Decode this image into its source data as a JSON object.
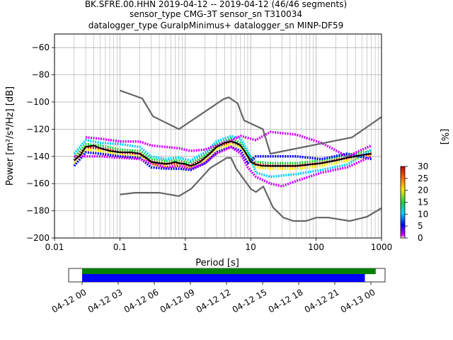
{
  "title_lines": [
    "BK.SFRE.00.HHN   2019-04-12 -- 2019-04-12  (46/46 segments)",
    "sensor_type CMG-3T sensor_sn T310034",
    "datalogger_type GuralpMinimus+ datalogger_sn MINP-DF59"
  ],
  "colorbar": {
    "label": "[%]",
    "ticks": [
      "0",
      "5",
      "10",
      "15",
      "20",
      "25",
      "30"
    ],
    "range": [
      0,
      30
    ]
  },
  "timeline": {
    "tick_labels": [
      "04-12 00",
      "04-12 03",
      "04-12 06",
      "04-12 09",
      "04-12 12",
      "04-12 15",
      "04-12 18",
      "04-12 21",
      "04-13 00"
    ],
    "bars": [
      {
        "name": "data",
        "color": "#008000",
        "start_hour": 0.0,
        "end_hour": 24.4
      },
      {
        "name": "psd",
        "color": "#0000ff",
        "start_hour": 0.0,
        "end_hour": 23.5
      }
    ]
  },
  "chart_data": {
    "type": "line",
    "xlabel": "Period [s]",
    "ylabel": "Power [m²/s⁴/Hz] [dB]",
    "xscale": "log",
    "xlim": [
      0.01,
      1000
    ],
    "ylim": [
      -200,
      -50
    ],
    "xticks": [
      {
        "v": 0.01,
        "label": "0.01"
      },
      {
        "v": 0.1,
        "label": "0.1"
      },
      {
        "v": 1,
        "label": "1"
      },
      {
        "v": 10,
        "label": "10"
      },
      {
        "v": 100,
        "label": "100"
      },
      {
        "v": 1000,
        "label": "1000"
      }
    ],
    "yticks": [
      {
        "v": -60,
        "label": "−60"
      },
      {
        "v": -80,
        "label": "−80"
      },
      {
        "v": -100,
        "label": "−100"
      },
      {
        "v": -120,
        "label": "−120"
      },
      {
        "v": -140,
        "label": "−140"
      },
      {
        "v": -160,
        "label": "−160"
      },
      {
        "v": -180,
        "label": "−180"
      },
      {
        "v": -200,
        "label": "−200"
      }
    ],
    "grid": true,
    "series": [
      {
        "role": "nhnm",
        "color": "#666666",
        "points": [
          [
            0.1,
            -91.5
          ],
          [
            0.22,
            -97.4
          ],
          [
            0.32,
            -110.5
          ],
          [
            0.8,
            -120
          ],
          [
            3.8,
            -98
          ],
          [
            4.6,
            -96.5
          ],
          [
            6.3,
            -101
          ],
          [
            7.9,
            -113.5
          ],
          [
            15.4,
            -120
          ],
          [
            20,
            -138
          ],
          [
            354.8,
            -126
          ],
          [
            1000,
            -111
          ]
        ]
      },
      {
        "role": "nlnm",
        "color": "#666666",
        "points": [
          [
            0.1,
            -168
          ],
          [
            0.17,
            -166.7
          ],
          [
            0.4,
            -166.7
          ],
          [
            0.8,
            -169.2
          ],
          [
            1.24,
            -163.7
          ],
          [
            2.4,
            -148.6
          ],
          [
            4.3,
            -141.1
          ],
          [
            5,
            -141.1
          ],
          [
            6,
            -149
          ],
          [
            10,
            -163.8
          ],
          [
            12,
            -166.2
          ],
          [
            15.6,
            -162.1
          ],
          [
            21.9,
            -177.5
          ],
          [
            31.6,
            -185
          ],
          [
            45,
            -187.5
          ],
          [
            70,
            -187.5
          ],
          [
            101,
            -185
          ],
          [
            154,
            -185
          ],
          [
            328,
            -187.5
          ],
          [
            600,
            -184.4
          ],
          [
            1000,
            -178
          ]
        ]
      },
      {
        "role": "mode",
        "color": "#000000",
        "points": [
          [
            0.02,
            -143
          ],
          [
            0.025,
            -139
          ],
          [
            0.03,
            -133
          ],
          [
            0.04,
            -132
          ],
          [
            0.05,
            -134
          ],
          [
            0.07,
            -136
          ],
          [
            0.1,
            -137
          ],
          [
            0.15,
            -137
          ],
          [
            0.2,
            -138
          ],
          [
            0.25,
            -141
          ],
          [
            0.3,
            -144
          ],
          [
            0.4,
            -145
          ],
          [
            0.5,
            -145.5
          ],
          [
            0.6,
            -145
          ],
          [
            0.7,
            -144
          ],
          [
            0.8,
            -145
          ],
          [
            1.0,
            -145.5
          ],
          [
            1.2,
            -147
          ],
          [
            1.4,
            -146
          ],
          [
            1.7,
            -144
          ],
          [
            2.0,
            -141
          ],
          [
            2.5,
            -137
          ],
          [
            3.0,
            -133
          ],
          [
            4.0,
            -130
          ],
          [
            5.0,
            -129
          ],
          [
            6.0,
            -130
          ],
          [
            7.0,
            -132
          ],
          [
            8.0,
            -136
          ],
          [
            9.0,
            -140
          ],
          [
            10.0,
            -144
          ],
          [
            12,
            -146
          ],
          [
            15,
            -147
          ],
          [
            20,
            -147
          ],
          [
            30,
            -147
          ],
          [
            50,
            -147
          ],
          [
            80,
            -146
          ],
          [
            120,
            -145
          ],
          [
            200,
            -143
          ],
          [
            300,
            -141
          ],
          [
            500,
            -139
          ],
          [
            700,
            -138
          ]
        ]
      }
    ],
    "pdf_bands": [
      {
        "percent": 30,
        "color": "#d00000",
        "points": [
          [
            0.02,
            -143
          ],
          [
            0.03,
            -133
          ],
          [
            0.05,
            -134
          ],
          [
            0.1,
            -137
          ],
          [
            0.2,
            -138
          ],
          [
            0.3,
            -144
          ],
          [
            0.5,
            -145.5
          ],
          [
            0.8,
            -145
          ],
          [
            1.2,
            -147
          ],
          [
            2,
            -141
          ],
          [
            3,
            -133
          ],
          [
            5,
            -129
          ],
          [
            7,
            -132
          ],
          [
            9,
            -140
          ],
          [
            12,
            -146
          ],
          [
            20,
            -147
          ],
          [
            50,
            -147
          ],
          [
            120,
            -145
          ],
          [
            300,
            -141
          ],
          [
            700,
            -138
          ]
        ]
      },
      {
        "percent": 20,
        "color": "#ffe800",
        "points": [
          [
            0.02,
            -145
          ],
          [
            0.03,
            -135
          ],
          [
            0.05,
            -136
          ],
          [
            0.1,
            -139
          ],
          [
            0.2,
            -140
          ],
          [
            0.3,
            -146
          ],
          [
            0.5,
            -147.5
          ],
          [
            0.8,
            -147
          ],
          [
            1.2,
            -149
          ],
          [
            2,
            -143
          ],
          [
            3,
            -135
          ],
          [
            5,
            -131
          ],
          [
            7,
            -134
          ],
          [
            9,
            -142
          ],
          [
            12,
            -148
          ],
          [
            20,
            -149
          ],
          [
            50,
            -149
          ],
          [
            120,
            -147
          ],
          [
            300,
            -143
          ],
          [
            700,
            -140
          ]
        ]
      },
      {
        "percent": 14,
        "color": "#20d040",
        "points": [
          [
            0.02,
            -141
          ],
          [
            0.03,
            -131
          ],
          [
            0.05,
            -132
          ],
          [
            0.1,
            -135
          ],
          [
            0.2,
            -136
          ],
          [
            0.3,
            -142
          ],
          [
            0.5,
            -143.5
          ],
          [
            0.8,
            -143
          ],
          [
            1.2,
            -145
          ],
          [
            2,
            -139
          ],
          [
            3,
            -131
          ],
          [
            5,
            -127
          ],
          [
            7,
            -130
          ],
          [
            9,
            -138
          ],
          [
            12,
            -144
          ],
          [
            20,
            -145
          ],
          [
            50,
            -145
          ],
          [
            120,
            -143
          ],
          [
            300,
            -139
          ],
          [
            700,
            -136
          ]
        ]
      },
      {
        "percent": 10,
        "color": "#00d0ff",
        "points": [
          [
            0.02,
            -138
          ],
          [
            0.03,
            -128
          ],
          [
            0.05,
            -130
          ],
          [
            0.1,
            -131
          ],
          [
            0.2,
            -133
          ],
          [
            0.3,
            -140
          ],
          [
            0.5,
            -142
          ],
          [
            0.8,
            -141
          ],
          [
            1.2,
            -143
          ],
          [
            2,
            -137
          ],
          [
            3,
            -129
          ],
          [
            5,
            -125
          ],
          [
            7,
            -127
          ],
          [
            9,
            -136
          ],
          [
            12,
            -152
          ],
          [
            20,
            -155
          ],
          [
            50,
            -153
          ],
          [
            120,
            -150
          ],
          [
            300,
            -146
          ],
          [
            700,
            -135
          ]
        ]
      },
      {
        "percent": 6,
        "color": "#0000ff",
        "points": [
          [
            0.02,
            -147
          ],
          [
            0.03,
            -137
          ],
          [
            0.05,
            -138
          ],
          [
            0.1,
            -140
          ],
          [
            0.2,
            -141
          ],
          [
            0.3,
            -148
          ],
          [
            0.5,
            -149
          ],
          [
            0.8,
            -149
          ],
          [
            1.2,
            -150
          ],
          [
            2,
            -145
          ],
          [
            3,
            -137
          ],
          [
            5,
            -133
          ],
          [
            7,
            -136
          ],
          [
            9,
            -145
          ],
          [
            12,
            -140
          ],
          [
            20,
            -140
          ],
          [
            50,
            -140
          ],
          [
            120,
            -142
          ],
          [
            300,
            -138
          ],
          [
            700,
            -142
          ]
        ]
      },
      {
        "percent": 2,
        "color": "#d000ff",
        "points": [
          [
            0.03,
            -126
          ],
          [
            0.05,
            -127
          ],
          [
            0.1,
            -129
          ],
          [
            0.2,
            -129
          ],
          [
            0.3,
            -132
          ],
          [
            0.5,
            -133
          ],
          [
            0.8,
            -134
          ],
          [
            1.2,
            -136
          ],
          [
            2,
            -135
          ],
          [
            3,
            -132
          ],
          [
            5,
            -128
          ],
          [
            7,
            -125
          ],
          [
            12,
            -128
          ],
          [
            20,
            -122
          ],
          [
            50,
            -124
          ],
          [
            120,
            -130
          ],
          [
            300,
            -140
          ],
          [
            700,
            -132
          ]
        ]
      },
      {
        "percent": 2,
        "color": "#d000ff",
        "points": [
          [
            0.02,
            -140
          ],
          [
            0.05,
            -140
          ],
          [
            0.1,
            -141
          ],
          [
            0.2,
            -142
          ],
          [
            0.3,
            -145
          ],
          [
            0.5,
            -148
          ],
          [
            0.8,
            -147
          ],
          [
            1.2,
            -149
          ],
          [
            2,
            -145
          ],
          [
            3,
            -138
          ],
          [
            5,
            -133
          ],
          [
            7,
            -138
          ],
          [
            9,
            -148
          ],
          [
            12,
            -155
          ],
          [
            20,
            -160
          ],
          [
            30,
            -162
          ],
          [
            50,
            -158
          ],
          [
            120,
            -152
          ],
          [
            300,
            -148
          ],
          [
            700,
            -140
          ]
        ]
      }
    ]
  }
}
